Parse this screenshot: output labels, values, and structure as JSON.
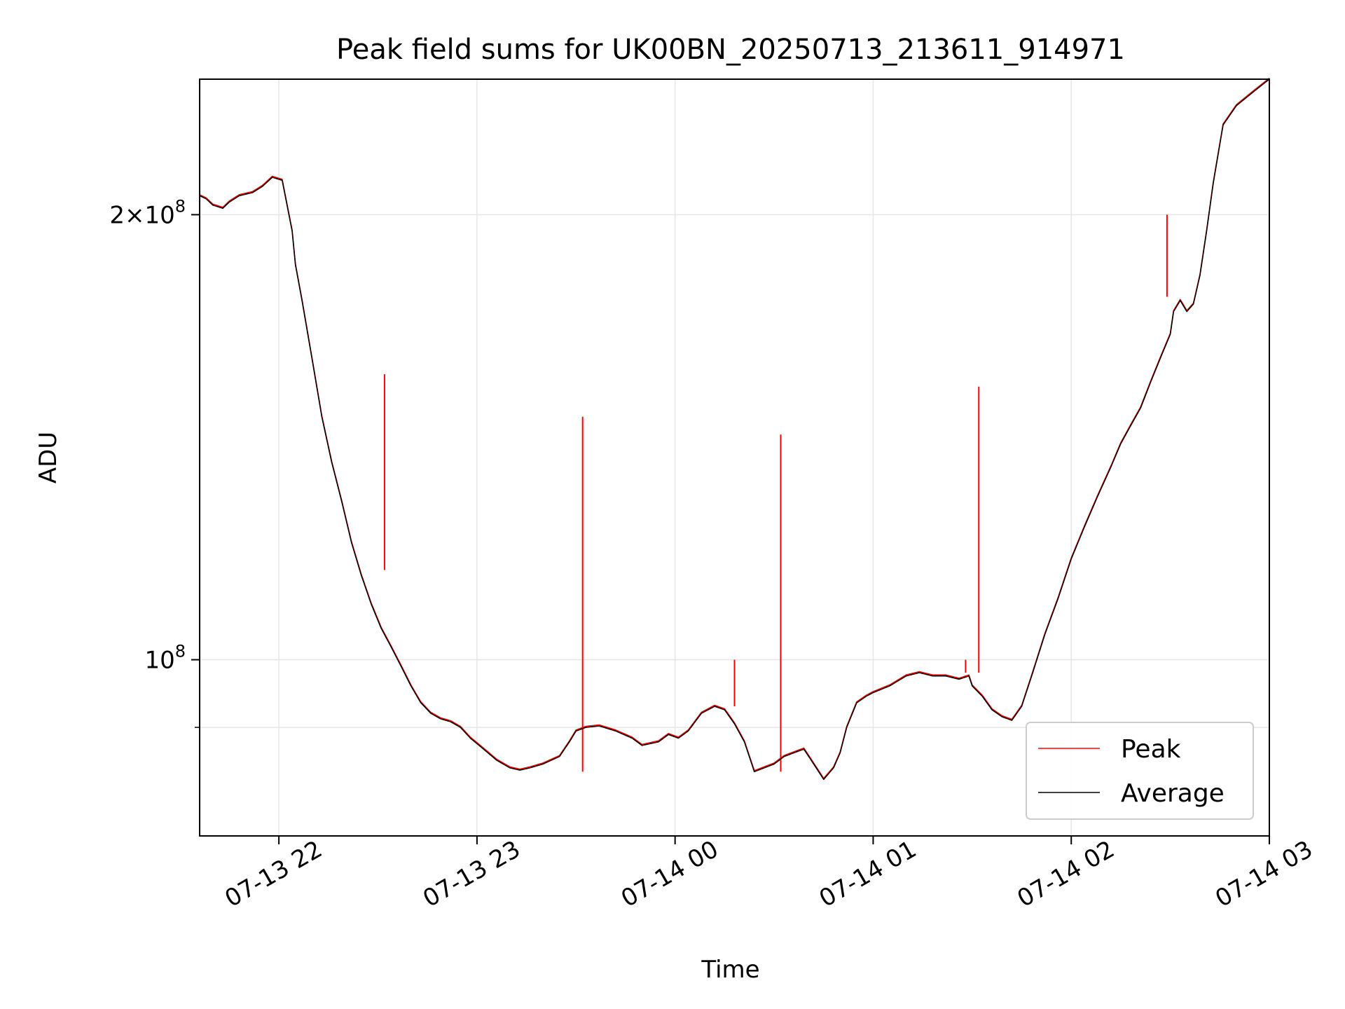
{
  "chart_data": {
    "type": "line",
    "title": "Peak field sums for UK00BN_20250713_213611_914971",
    "xlabel": "Time",
    "ylabel": "ADU",
    "x_axis": {
      "type": "time",
      "xlim": [
        "2025-07-13T21:36:00",
        "2025-07-14T03:00:00"
      ],
      "ticks": [
        "2025-07-13T22:00",
        "2025-07-13T23:00",
        "2025-07-14T00:00",
        "2025-07-14T01:00",
        "2025-07-14T02:00",
        "2025-07-14T03:00"
      ],
      "tick_labels": [
        "07-13 22",
        "07-13 23",
        "07-14 00",
        "07-14 01",
        "07-14 02",
        "07-14 03"
      ]
    },
    "y_axis": {
      "scale": "log",
      "ylim": [
        76000000.0,
        247000000.0
      ],
      "major_ticks": [
        100000000.0,
        200000000.0
      ],
      "minor_ticks": [
        90000000.0
      ],
      "tick_labels": [
        {
          "value": 100000000.0,
          "mantissa": "",
          "base": "10",
          "exp": "8"
        },
        {
          "value": 200000000.0,
          "mantissa": "2",
          "base": "10",
          "exp": "8"
        }
      ]
    },
    "grid": true,
    "legend": {
      "placement": "lower right",
      "entries": [
        "Peak",
        "Average"
      ]
    },
    "colors": {
      "Peak": "#ff0000",
      "Average": "#000000",
      "grid": "#e6e6e6"
    },
    "series": [
      {
        "name": "Average",
        "x": [
          "2025-07-13T21:36",
          "2025-07-13T21:38",
          "2025-07-13T21:40",
          "2025-07-13T21:43",
          "2025-07-13T21:45",
          "2025-07-13T21:48",
          "2025-07-13T21:52",
          "2025-07-13T21:55",
          "2025-07-13T21:58",
          "2025-07-13T22:01",
          "2025-07-13T22:04",
          "2025-07-13T22:05",
          "2025-07-13T22:07",
          "2025-07-13T22:10",
          "2025-07-13T22:13",
          "2025-07-13T22:16",
          "2025-07-13T22:19",
          "2025-07-13T22:22",
          "2025-07-13T22:25",
          "2025-07-13T22:28",
          "2025-07-13T22:31",
          "2025-07-13T22:34",
          "2025-07-13T22:37",
          "2025-07-13T22:40",
          "2025-07-13T22:43",
          "2025-07-13T22:46",
          "2025-07-13T22:49",
          "2025-07-13T22:52",
          "2025-07-13T22:55",
          "2025-07-13T22:58",
          "2025-07-13T23:02",
          "2025-07-13T23:06",
          "2025-07-13T23:10",
          "2025-07-13T23:13",
          "2025-07-13T23:16",
          "2025-07-13T23:20",
          "2025-07-13T23:25",
          "2025-07-13T23:28",
          "2025-07-13T23:30",
          "2025-07-13T23:33",
          "2025-07-13T23:37",
          "2025-07-13T23:42",
          "2025-07-13T23:47",
          "2025-07-13T23:50",
          "2025-07-13T23:55",
          "2025-07-13T23:58",
          "2025-07-14T00:01",
          "2025-07-14T00:04",
          "2025-07-14T00:08",
          "2025-07-14T00:12",
          "2025-07-14T00:15",
          "2025-07-14T00:18",
          "2025-07-14T00:21",
          "2025-07-14T00:24",
          "2025-07-14T00:27",
          "2025-07-14T00:30",
          "2025-07-14T00:33",
          "2025-07-14T00:36",
          "2025-07-14T00:39",
          "2025-07-14T00:42",
          "2025-07-14T00:45",
          "2025-07-14T00:48",
          "2025-07-14T00:50",
          "2025-07-14T00:52",
          "2025-07-14T00:55",
          "2025-07-14T00:58",
          "2025-07-14T01:00",
          "2025-07-14T01:05",
          "2025-07-14T01:10",
          "2025-07-14T01:14",
          "2025-07-14T01:18",
          "2025-07-14T01:22",
          "2025-07-14T01:26",
          "2025-07-14T01:29",
          "2025-07-14T01:30",
          "2025-07-14T01:33",
          "2025-07-14T01:36",
          "2025-07-14T01:39",
          "2025-07-14T01:42",
          "2025-07-14T01:45",
          "2025-07-14T01:48",
          "2025-07-14T01:52",
          "2025-07-14T01:56",
          "2025-07-14T02:00",
          "2025-07-14T02:04",
          "2025-07-14T02:08",
          "2025-07-14T02:12",
          "2025-07-14T02:15",
          "2025-07-14T02:18",
          "2025-07-14T02:21",
          "2025-07-14T02:24",
          "2025-07-14T02:27",
          "2025-07-14T02:30",
          "2025-07-14T02:31",
          "2025-07-14T02:33",
          "2025-07-14T02:35",
          "2025-07-14T02:37",
          "2025-07-14T02:39",
          "2025-07-14T02:41",
          "2025-07-14T02:43",
          "2025-07-14T02:46",
          "2025-07-14T02:50",
          "2025-07-14T02:55",
          "2025-07-14T03:00"
        ],
        "y": [
          206000000.0,
          205000000.0,
          203000000.0,
          202000000.0,
          204000000.0,
          206000000.0,
          207000000.0,
          209000000.0,
          212000000.0,
          211000000.0,
          195000000.0,
          185000000.0,
          175000000.0,
          160000000.0,
          146000000.0,
          136000000.0,
          128000000.0,
          120000000.0,
          114000000.0,
          109000000.0,
          105000000.0,
          102000000.0,
          99000000.0,
          96000000.0,
          93500000.0,
          92000000.0,
          91200000.0,
          90800000.0,
          90000000.0,
          88500000.0,
          87000000.0,
          85500000.0,
          84500000.0,
          84200000.0,
          84500000.0,
          85000000.0,
          86000000.0,
          88000000.0,
          89500000.0,
          90000000.0,
          90200000.0,
          89500000.0,
          88500000.0,
          87500000.0,
          88000000.0,
          89000000.0,
          88500000.0,
          89500000.0,
          92000000.0,
          93000000.0,
          92500000.0,
          90500000.0,
          88000000.0,
          84000000.0,
          84500000.0,
          85000000.0,
          86000000.0,
          86500000.0,
          87000000.0,
          85000000.0,
          83000000.0,
          84500000.0,
          86500000.0,
          90000000.0,
          93500000.0,
          94500000.0,
          95000000.0,
          96000000.0,
          97500000.0,
          98000000.0,
          97500000.0,
          97500000.0,
          97000000.0,
          97500000.0,
          96000000.0,
          94500000.0,
          92500000.0,
          91500000.0,
          91000000.0,
          93000000.0,
          97500000.0,
          104000000.0,
          110000000.0,
          117000000.0,
          123000000.0,
          129000000.0,
          135000000.0,
          140000000.0,
          144000000.0,
          148000000.0,
          154000000.0,
          160000000.0,
          166000000.0,
          172000000.0,
          175000000.0,
          172000000.0,
          174000000.0,
          182000000.0,
          195000000.0,
          210000000.0,
          230000000.0,
          237000000.0,
          242000000.0,
          247000000.0
        ]
      },
      {
        "name": "Peak",
        "spikes": [
          {
            "t": "2025-07-13T22:32",
            "base": 115000000.0,
            "peak": 156000000.0
          },
          {
            "t": "2025-07-13T23:32",
            "base": 84000000.0,
            "peak": 146000000.0
          },
          {
            "t": "2025-07-14T00:18",
            "base": 93000000.0,
            "peak": 100000000.0
          },
          {
            "t": "2025-07-14T00:32",
            "base": 84000000.0,
            "peak": 142000000.0
          },
          {
            "t": "2025-07-14T01:28",
            "base": 98000000.0,
            "peak": 100000000.0
          },
          {
            "t": "2025-07-14T01:32",
            "base": 98000000.0,
            "peak": 153000000.0
          },
          {
            "t": "2025-07-14T02:29",
            "base": 176000000.0,
            "peak": 200000000.0
          }
        ]
      }
    ]
  }
}
